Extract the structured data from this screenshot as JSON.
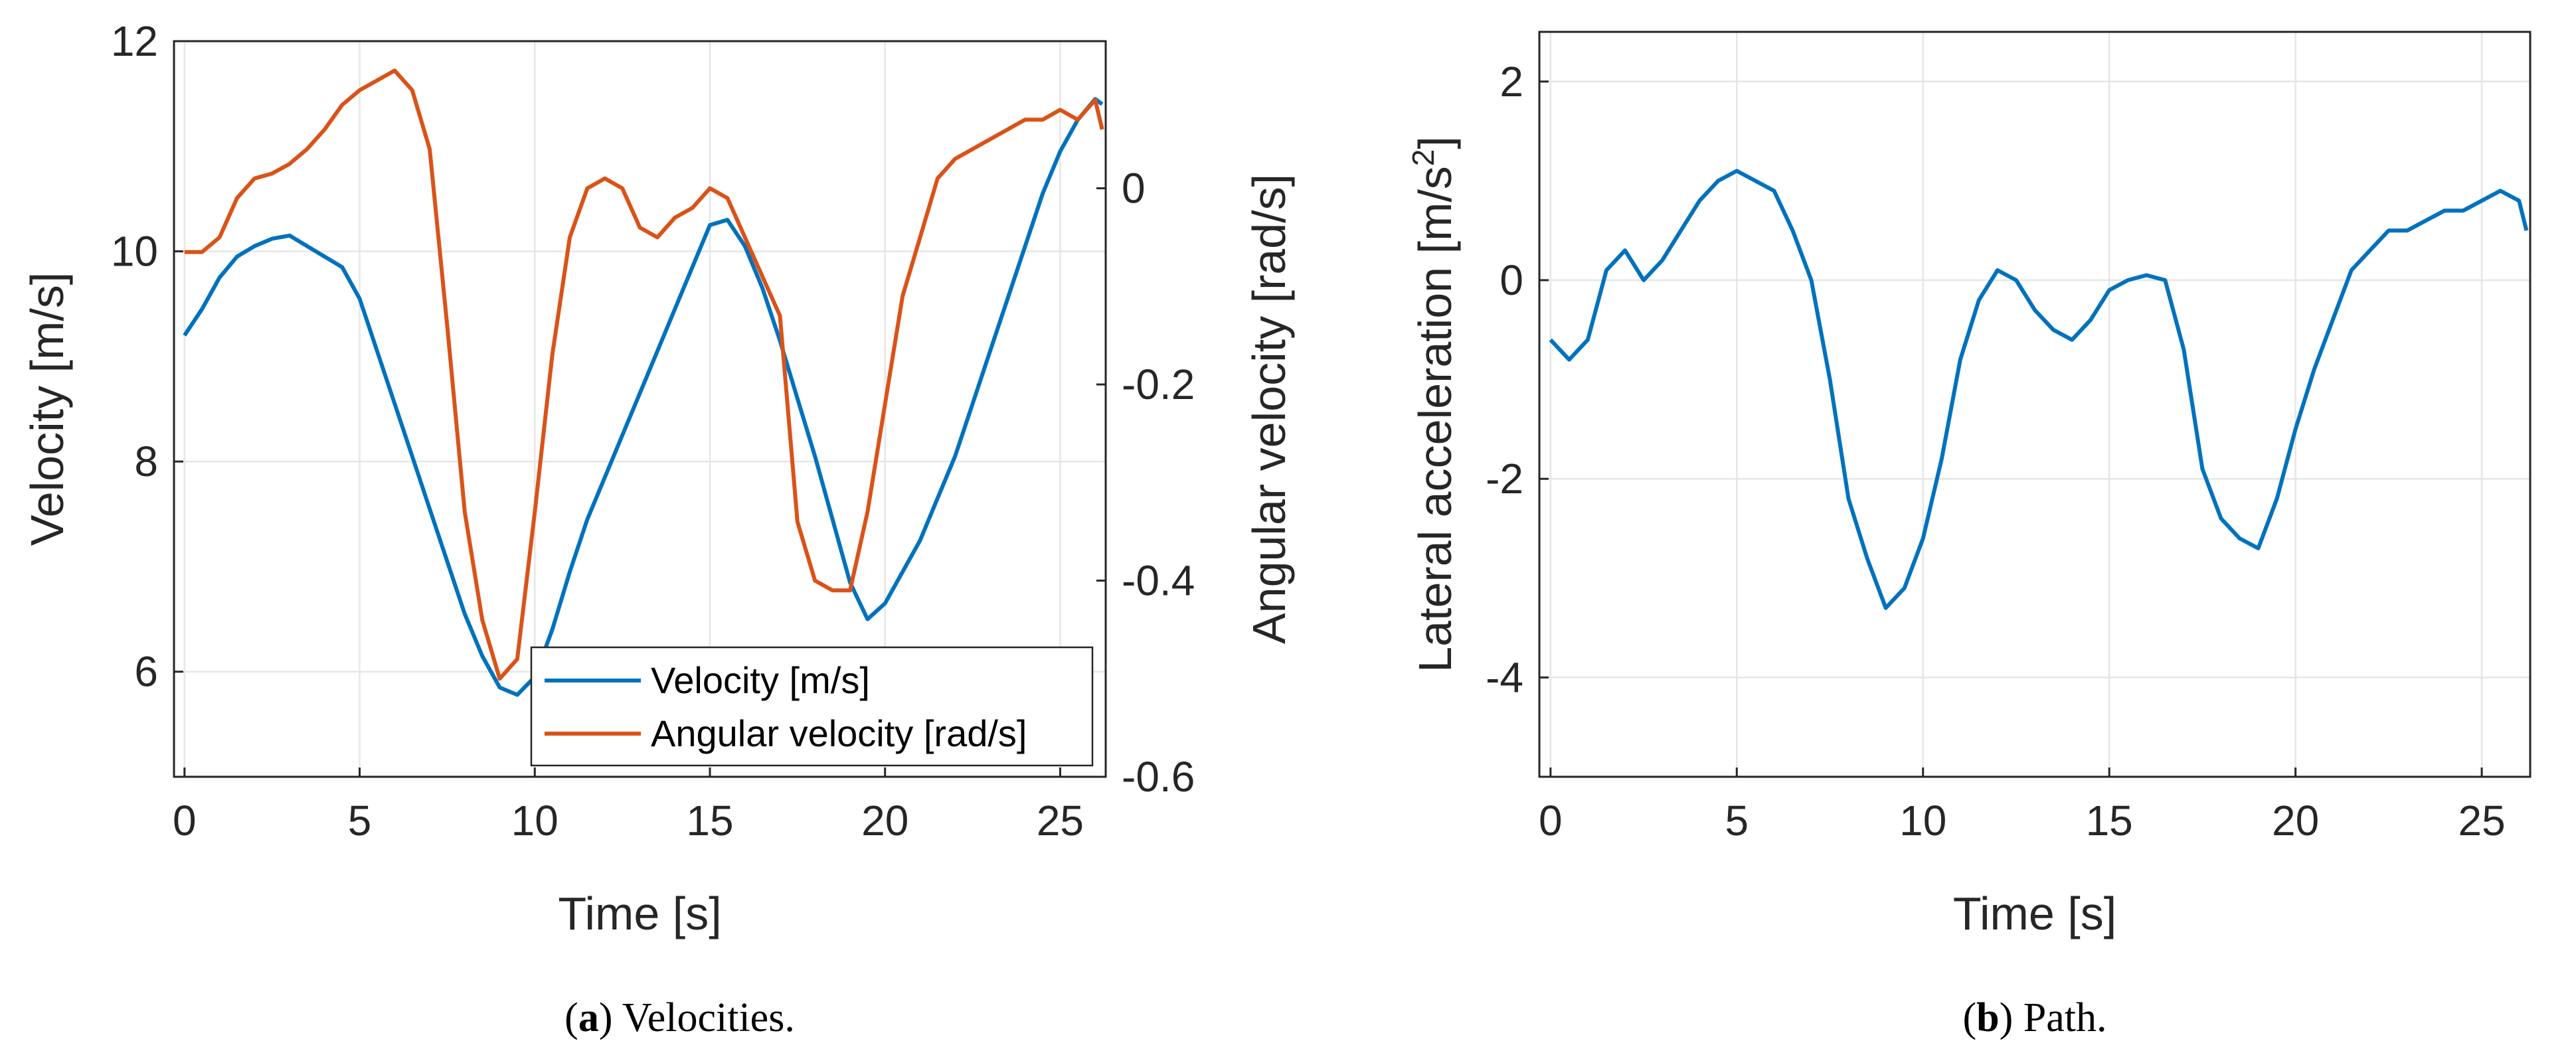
{
  "colors": {
    "blue": "#0072BD",
    "orange": "#D95319",
    "grid": "#e6e6e6",
    "axis": "#262626"
  },
  "captions": {
    "a_label": "a",
    "a_text": ") Velocities.",
    "b_label": "b",
    "b_text": ") Path."
  },
  "chart_data": [
    {
      "id": "a",
      "type": "line",
      "xlabel": "Time [s]",
      "ylabel": "Velocity [m/s]",
      "ylabel_right": "Angular velocity [rad/s]",
      "xlim": [
        -0.3,
        26.3
      ],
      "ylim": [
        5,
        12
      ],
      "ylim_right": [
        -0.6,
        0.15
      ],
      "xticks": [
        0,
        5,
        10,
        15,
        20,
        25
      ],
      "yticks": [
        6,
        8,
        10,
        12
      ],
      "yticks_right": [
        0,
        -0.2,
        -0.4,
        -0.6
      ],
      "yticks_right_labels": [
        "0",
        "-0.2",
        "-0.4",
        "-0.6"
      ],
      "grid": true,
      "legend_position": "bottom-right",
      "legend": [
        "Velocity [m/s]",
        "Angular velocity [rad/s]"
      ],
      "series": [
        {
          "name": "Velocity [m/s]",
          "axis": "left",
          "color": "#0072BD",
          "x": [
            0,
            0.5,
            1,
            1.5,
            2,
            2.5,
            3,
            3.5,
            4,
            4.5,
            5,
            5.5,
            6,
            6.5,
            7,
            7.5,
            8,
            8.5,
            9,
            9.5,
            10,
            10.5,
            11,
            11.5,
            12,
            12.5,
            13,
            13.5,
            14,
            14.5,
            15,
            15.5,
            16,
            16.5,
            17,
            17.5,
            18,
            18.5,
            19,
            19.5,
            20,
            20.5,
            21,
            21.5,
            22,
            22.5,
            23,
            23.5,
            24,
            24.5,
            25,
            25.5,
            26,
            26.2
          ],
          "y": [
            9.2,
            9.45,
            9.75,
            9.95,
            10.05,
            10.12,
            10.15,
            10.05,
            9.95,
            9.85,
            9.55,
            9.05,
            8.55,
            8.05,
            7.55,
            7.05,
            6.55,
            6.15,
            5.85,
            5.78,
            5.95,
            6.4,
            6.95,
            7.45,
            7.85,
            8.25,
            8.65,
            9.05,
            9.45,
            9.85,
            10.25,
            10.3,
            10.05,
            9.65,
            9.15,
            8.6,
            8.05,
            7.45,
            6.85,
            6.5,
            6.65,
            6.95,
            7.25,
            7.65,
            8.05,
            8.55,
            9.05,
            9.55,
            10.05,
            10.55,
            10.95,
            11.25,
            11.45,
            11.4
          ]
        },
        {
          "name": "Angular velocity [rad/s]",
          "axis": "right",
          "color": "#D95319",
          "x": [
            0,
            0.5,
            1,
            1.5,
            2,
            2.5,
            3,
            3.5,
            4,
            4.5,
            5,
            5.5,
            6,
            6.5,
            7,
            7.5,
            8,
            8.5,
            9,
            9.5,
            10,
            10.5,
            11,
            11.5,
            12,
            12.5,
            13,
            13.5,
            14,
            14.5,
            15,
            15.5,
            16,
            16.5,
            17,
            17.5,
            18,
            18.5,
            19,
            19.5,
            20,
            20.5,
            21,
            21.5,
            22,
            22.5,
            23,
            23.5,
            24,
            24.5,
            25,
            25.5,
            26,
            26.2
          ],
          "y": [
            -0.065,
            -0.065,
            -0.05,
            -0.01,
            0.01,
            0.015,
            0.025,
            0.04,
            0.06,
            0.085,
            0.1,
            0.11,
            0.12,
            0.1,
            0.04,
            -0.14,
            -0.33,
            -0.44,
            -0.5,
            -0.48,
            -0.33,
            -0.17,
            -0.05,
            0.0,
            0.01,
            0.0,
            -0.04,
            -0.05,
            -0.03,
            -0.02,
            0.0,
            -0.01,
            -0.05,
            -0.09,
            -0.13,
            -0.34,
            -0.4,
            -0.41,
            -0.41,
            -0.33,
            -0.22,
            -0.11,
            -0.05,
            0.01,
            0.03,
            0.04,
            0.05,
            0.06,
            0.07,
            0.07,
            0.08,
            0.07,
            0.09,
            0.06
          ]
        }
      ]
    },
    {
      "id": "b",
      "type": "line",
      "xlabel": "Time [s]",
      "ylabel": "Lateral acceleration [m/s",
      "ylabel_sup": "2",
      "ylabel_end": "]",
      "xlim": [
        -0.3,
        26.3
      ],
      "ylim": [
        -5,
        2.5
      ],
      "xticks": [
        0,
        5,
        10,
        15,
        20,
        25
      ],
      "yticks": [
        -4,
        -2,
        0,
        2
      ],
      "grid": true,
      "series": [
        {
          "name": "Lateral acceleration",
          "color": "#0072BD",
          "x": [
            0,
            0.5,
            1,
            1.5,
            2,
            2.5,
            3,
            3.5,
            4,
            4.5,
            5,
            5.5,
            6,
            6.5,
            7,
            7.5,
            8,
            8.5,
            9,
            9.5,
            10,
            10.5,
            11,
            11.5,
            12,
            12.5,
            13,
            13.5,
            14,
            14.5,
            15,
            15.5,
            16,
            16.5,
            17,
            17.5,
            18,
            18.5,
            19,
            19.5,
            20,
            20.5,
            21,
            21.5,
            22,
            22.5,
            23,
            23.5,
            24,
            24.5,
            25,
            25.5,
            26,
            26.2
          ],
          "y": [
            -0.6,
            -0.8,
            -0.6,
            0.1,
            0.3,
            0.0,
            0.2,
            0.5,
            0.8,
            1.0,
            1.1,
            1.0,
            0.9,
            0.5,
            0.0,
            -1.0,
            -2.2,
            -2.8,
            -3.3,
            -3.1,
            -2.6,
            -1.8,
            -0.8,
            -0.2,
            0.1,
            0.0,
            -0.3,
            -0.5,
            -0.6,
            -0.4,
            -0.1,
            0.0,
            0.05,
            0.0,
            -0.7,
            -1.9,
            -2.4,
            -2.6,
            -2.7,
            -2.2,
            -1.5,
            -0.9,
            -0.4,
            0.1,
            0.3,
            0.5,
            0.5,
            0.6,
            0.7,
            0.7,
            0.8,
            0.9,
            0.8,
            0.5
          ]
        }
      ]
    }
  ]
}
